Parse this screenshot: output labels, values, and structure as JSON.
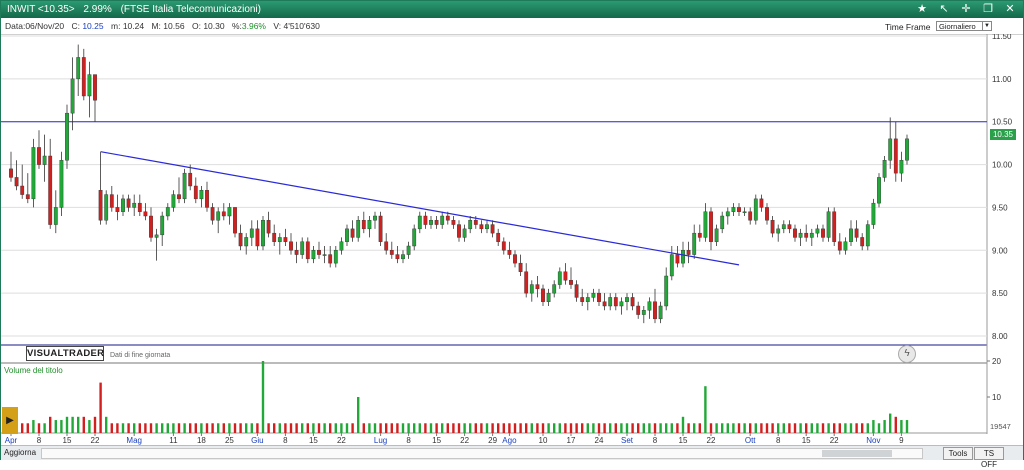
{
  "window": {
    "symbol": "INWIT <10.35>",
    "change": "2.99%",
    "name": "(FTSE Italia Telecomunicazioni)"
  },
  "info": {
    "date_label": "Data:",
    "date": "06/Nov/20",
    "close_label": "C:",
    "close": "10.25",
    "min_label": "m:",
    "min": "10.24",
    "max_label": "M:",
    "max": "10.56",
    "open_label": "O:",
    "open": "10.30",
    "pct_label": "%:",
    "pct": "3.96%",
    "vol_label": "V:",
    "vol": "4'510'630"
  },
  "timeframe": {
    "label": "Time Frame",
    "selected": "Giornaliero"
  },
  "toolbar_icons": [
    "star-icon",
    "pointer-icon",
    "crosshair-icon",
    "restore-icon",
    "close-icon"
  ],
  "logo": "VISUALTRADER",
  "eod_note": "Dati di fine giornata",
  "volume_title": "Volume del titolo",
  "volume_last_value": "19547",
  "last_price_tag": "10.35",
  "bottom": {
    "update": "Aggiorna",
    "tools": "Tools",
    "ts": "TS OFF"
  },
  "colors": {
    "up": "#21a838",
    "down": "#d41f1f",
    "trendline": "#2a2ad8",
    "hline": "#2a2ad8"
  },
  "chart_data": {
    "type": "candlestick",
    "y_axis": {
      "min": 8.0,
      "max": 11.5,
      "ticks": [
        "11.50",
        "11.00",
        "10.50",
        "10.00",
        "9.50",
        "9.00",
        "8.50",
        "8.00"
      ]
    },
    "volume_axis": {
      "ticks": [
        "20",
        "10"
      ]
    },
    "x_axis": {
      "labels": [
        {
          "t": "Apr",
          "month": true,
          "i": 0
        },
        {
          "t": "8",
          "i": 5
        },
        {
          "t": "15",
          "i": 10
        },
        {
          "t": "22",
          "i": 15
        },
        {
          "t": "Mag",
          "month": true,
          "i": 22
        },
        {
          "t": "11",
          "i": 29
        },
        {
          "t": "18",
          "i": 34
        },
        {
          "t": "25",
          "i": 39
        },
        {
          "t": "Giu",
          "month": true,
          "i": 44
        },
        {
          "t": "8",
          "i": 49
        },
        {
          "t": "15",
          "i": 54
        },
        {
          "t": "22",
          "i": 59
        },
        {
          "t": "Lug",
          "month": true,
          "i": 66
        },
        {
          "t": "8",
          "i": 71
        },
        {
          "t": "15",
          "i": 76
        },
        {
          "t": "22",
          "i": 81
        },
        {
          "t": "29",
          "i": 86
        },
        {
          "t": "Ago",
          "month": true,
          "i": 89
        },
        {
          "t": "10",
          "i": 95
        },
        {
          "t": "17",
          "i": 100
        },
        {
          "t": "24",
          "i": 105
        },
        {
          "t": "Set",
          "month": true,
          "i": 110
        },
        {
          "t": "8",
          "i": 115
        },
        {
          "t": "15",
          "i": 120
        },
        {
          "t": "22",
          "i": 125
        },
        {
          "t": "Ott",
          "month": true,
          "i": 132
        },
        {
          "t": "8",
          "i": 137
        },
        {
          "t": "15",
          "i": 142
        },
        {
          "t": "22",
          "i": 147
        },
        {
          "t": "Nov",
          "month": true,
          "i": 154
        },
        {
          "t": "9",
          "i": 159
        }
      ]
    },
    "horizontal_line": 10.5,
    "trendline": {
      "from": {
        "i": 16,
        "y": 10.15
      },
      "to": {
        "i": 130,
        "y": 8.83
      }
    },
    "candles": [
      [
        9.95,
        10.15,
        9.8,
        9.85,
        4
      ],
      [
        9.85,
        10.05,
        9.7,
        9.75,
        3
      ],
      [
        9.75,
        10.0,
        9.6,
        9.65,
        3
      ],
      [
        9.65,
        9.9,
        9.55,
        9.6,
        3
      ],
      [
        9.6,
        10.3,
        9.5,
        10.2,
        4
      ],
      [
        10.2,
        10.4,
        9.95,
        10.0,
        3
      ],
      [
        10.0,
        10.35,
        9.8,
        10.1,
        3
      ],
      [
        10.1,
        10.3,
        9.25,
        9.3,
        5
      ],
      [
        9.3,
        9.7,
        9.2,
        9.5,
        4
      ],
      [
        9.5,
        10.15,
        9.4,
        10.05,
        4
      ],
      [
        10.05,
        10.7,
        9.95,
        10.6,
        5
      ],
      [
        10.6,
        11.25,
        10.4,
        11.0,
        5
      ],
      [
        11.0,
        11.4,
        10.8,
        11.25,
        5
      ],
      [
        11.25,
        11.35,
        10.75,
        10.8,
        5
      ],
      [
        10.8,
        11.2,
        10.55,
        11.05,
        4
      ],
      [
        11.05,
        11.05,
        10.5,
        10.75,
        5
      ],
      [
        9.7,
        10.15,
        9.3,
        9.35,
        14
      ],
      [
        9.35,
        9.7,
        9.3,
        9.65,
        5
      ],
      [
        9.65,
        9.75,
        9.45,
        9.5,
        3
      ],
      [
        9.5,
        9.65,
        9.35,
        9.45,
        3
      ],
      [
        9.45,
        9.65,
        9.4,
        9.6,
        3
      ],
      [
        9.6,
        9.65,
        9.45,
        9.5,
        3
      ],
      [
        9.5,
        9.65,
        9.4,
        9.55,
        3
      ],
      [
        9.55,
        9.65,
        9.4,
        9.45,
        3
      ],
      [
        9.45,
        9.55,
        9.35,
        9.4,
        3
      ],
      [
        9.4,
        9.5,
        9.1,
        9.15,
        3
      ],
      [
        9.15,
        9.25,
        8.88,
        9.18,
        3
      ],
      [
        9.18,
        9.45,
        9.05,
        9.4,
        3
      ],
      [
        9.4,
        9.55,
        9.35,
        9.5,
        3
      ],
      [
        9.5,
        9.7,
        9.45,
        9.65,
        3
      ],
      [
        9.65,
        9.85,
        9.55,
        9.6,
        3
      ],
      [
        9.6,
        9.95,
        9.55,
        9.9,
        3
      ],
      [
        9.9,
        10.0,
        9.7,
        9.75,
        3
      ],
      [
        9.75,
        9.85,
        9.55,
        9.6,
        3
      ],
      [
        9.6,
        9.75,
        9.5,
        9.7,
        3
      ],
      [
        9.7,
        9.8,
        9.45,
        9.5,
        3
      ],
      [
        9.5,
        9.55,
        9.3,
        9.35,
        3
      ],
      [
        9.35,
        9.5,
        9.2,
        9.45,
        3
      ],
      [
        9.45,
        9.55,
        9.35,
        9.4,
        3
      ],
      [
        9.4,
        9.55,
        9.3,
        9.5,
        3
      ],
      [
        9.5,
        9.5,
        9.15,
        9.2,
        3
      ],
      [
        9.2,
        9.3,
        9.0,
        9.05,
        3
      ],
      [
        9.05,
        9.2,
        8.95,
        9.15,
        3
      ],
      [
        9.15,
        9.35,
        9.05,
        9.25,
        3
      ],
      [
        9.25,
        9.35,
        9.0,
        9.05,
        3
      ],
      [
        9.05,
        9.4,
        9.0,
        9.35,
        20
      ],
      [
        9.35,
        9.45,
        9.15,
        9.2,
        3
      ],
      [
        9.2,
        9.3,
        9.05,
        9.1,
        3
      ],
      [
        9.1,
        9.2,
        8.95,
        9.15,
        3
      ],
      [
        9.15,
        9.25,
        9.05,
        9.1,
        3
      ],
      [
        9.1,
        9.2,
        8.95,
        9.0,
        3
      ],
      [
        9.0,
        9.1,
        8.85,
        8.95,
        3
      ],
      [
        8.95,
        9.15,
        8.9,
        9.1,
        3
      ],
      [
        9.1,
        9.15,
        8.85,
        8.9,
        3
      ],
      [
        8.9,
        9.05,
        8.85,
        9.0,
        3
      ],
      [
        9.0,
        9.1,
        8.9,
        8.95,
        3
      ],
      [
        8.95,
        9.05,
        8.85,
        8.95,
        3
      ],
      [
        8.95,
        9.05,
        8.8,
        8.85,
        3
      ],
      [
        8.85,
        9.05,
        8.8,
        9.0,
        3
      ],
      [
        9.0,
        9.15,
        8.95,
        9.1,
        3
      ],
      [
        9.1,
        9.3,
        9.05,
        9.25,
        3
      ],
      [
        9.25,
        9.35,
        9.1,
        9.15,
        3
      ],
      [
        9.15,
        9.4,
        9.1,
        9.35,
        10
      ],
      [
        9.35,
        9.45,
        9.2,
        9.25,
        3
      ],
      [
        9.25,
        9.4,
        9.15,
        9.35,
        3
      ],
      [
        9.35,
        9.45,
        9.25,
        9.4,
        3
      ],
      [
        9.4,
        9.45,
        9.05,
        9.1,
        3
      ],
      [
        9.1,
        9.2,
        8.95,
        9.0,
        3
      ],
      [
        9.0,
        9.1,
        8.9,
        8.95,
        3
      ],
      [
        8.95,
        9.05,
        8.85,
        8.9,
        3
      ],
      [
        8.9,
        9.0,
        8.85,
        8.95,
        3
      ],
      [
        8.95,
        9.1,
        8.9,
        9.05,
        3
      ],
      [
        9.05,
        9.3,
        9.0,
        9.25,
        3
      ],
      [
        9.25,
        9.45,
        9.2,
        9.4,
        3
      ],
      [
        9.4,
        9.45,
        9.25,
        9.3,
        3
      ],
      [
        9.3,
        9.4,
        9.25,
        9.35,
        3
      ],
      [
        9.35,
        9.4,
        9.25,
        9.3,
        3
      ],
      [
        9.3,
        9.45,
        9.25,
        9.4,
        3
      ],
      [
        9.4,
        9.45,
        9.3,
        9.35,
        3
      ],
      [
        9.35,
        9.4,
        9.25,
        9.3,
        3
      ],
      [
        9.3,
        9.35,
        9.1,
        9.15,
        3
      ],
      [
        9.15,
        9.3,
        9.1,
        9.25,
        3
      ],
      [
        9.25,
        9.4,
        9.2,
        9.35,
        3
      ],
      [
        9.35,
        9.4,
        9.25,
        9.3,
        3
      ],
      [
        9.3,
        9.35,
        9.2,
        9.25,
        3
      ],
      [
        9.25,
        9.35,
        9.2,
        9.3,
        3
      ],
      [
        9.3,
        9.35,
        9.15,
        9.2,
        3
      ],
      [
        9.2,
        9.25,
        9.05,
        9.1,
        3
      ],
      [
        9.1,
        9.15,
        8.95,
        9.0,
        3
      ],
      [
        9.0,
        9.1,
        8.9,
        8.95,
        3
      ],
      [
        8.95,
        9.0,
        8.8,
        8.85,
        3
      ],
      [
        8.85,
        8.95,
        8.7,
        8.75,
        3
      ],
      [
        8.75,
        8.85,
        8.45,
        8.5,
        3
      ],
      [
        8.5,
        8.65,
        8.4,
        8.6,
        3
      ],
      [
        8.6,
        8.7,
        8.45,
        8.55,
        3
      ],
      [
        8.55,
        8.6,
        8.35,
        8.4,
        3
      ],
      [
        8.4,
        8.55,
        8.35,
        8.5,
        3
      ],
      [
        8.5,
        8.65,
        8.45,
        8.6,
        3
      ],
      [
        8.6,
        8.8,
        8.55,
        8.75,
        3
      ],
      [
        8.75,
        8.85,
        8.6,
        8.65,
        3
      ],
      [
        8.65,
        8.8,
        8.55,
        8.6,
        3
      ],
      [
        8.6,
        8.65,
        8.4,
        8.45,
        3
      ],
      [
        8.45,
        8.55,
        8.35,
        8.4,
        3
      ],
      [
        8.4,
        8.5,
        8.3,
        8.45,
        3
      ],
      [
        8.45,
        8.55,
        8.4,
        8.5,
        3
      ],
      [
        8.5,
        8.55,
        8.35,
        8.4,
        3
      ],
      [
        8.4,
        8.5,
        8.3,
        8.35,
        3
      ],
      [
        8.35,
        8.5,
        8.3,
        8.45,
        3
      ],
      [
        8.45,
        8.5,
        8.3,
        8.35,
        3
      ],
      [
        8.35,
        8.45,
        8.25,
        8.4,
        3
      ],
      [
        8.4,
        8.5,
        8.3,
        8.45,
        3
      ],
      [
        8.45,
        8.5,
        8.3,
        8.35,
        3
      ],
      [
        8.35,
        8.4,
        8.2,
        8.25,
        3
      ],
      [
        8.25,
        8.35,
        8.15,
        8.3,
        3
      ],
      [
        8.3,
        8.45,
        8.2,
        8.4,
        3
      ],
      [
        8.4,
        8.55,
        8.15,
        8.2,
        3
      ],
      [
        8.2,
        8.4,
        8.15,
        8.35,
        3
      ],
      [
        8.35,
        8.8,
        8.3,
        8.7,
        3
      ],
      [
        8.7,
        9.05,
        8.65,
        8.95,
        3
      ],
      [
        8.95,
        9.05,
        8.8,
        8.85,
        3
      ],
      [
        8.85,
        9.1,
        8.8,
        9.0,
        5
      ],
      [
        9.0,
        9.1,
        8.85,
        8.95,
        3
      ],
      [
        8.95,
        9.3,
        8.9,
        9.2,
        3
      ],
      [
        9.2,
        9.3,
        9.1,
        9.15,
        3
      ],
      [
        9.15,
        9.55,
        9.1,
        9.45,
        13
      ],
      [
        9.45,
        9.5,
        9.0,
        9.1,
        3
      ],
      [
        9.1,
        9.3,
        9.05,
        9.25,
        3
      ],
      [
        9.25,
        9.45,
        9.2,
        9.4,
        3
      ],
      [
        9.4,
        9.5,
        9.3,
        9.45,
        3
      ],
      [
        9.45,
        9.55,
        9.4,
        9.5,
        3
      ],
      [
        9.5,
        9.55,
        9.4,
        9.45,
        3
      ],
      [
        9.45,
        9.5,
        9.4,
        9.45,
        3
      ],
      [
        9.45,
        9.5,
        9.3,
        9.35,
        3
      ],
      [
        9.35,
        9.65,
        9.3,
        9.6,
        3
      ],
      [
        9.6,
        9.65,
        9.45,
        9.5,
        3
      ],
      [
        9.5,
        9.55,
        9.3,
        9.35,
        3
      ],
      [
        9.35,
        9.4,
        9.15,
        9.2,
        3
      ],
      [
        9.2,
        9.3,
        9.1,
        9.25,
        3
      ],
      [
        9.25,
        9.35,
        9.2,
        9.3,
        3
      ],
      [
        9.3,
        9.35,
        9.2,
        9.25,
        3
      ],
      [
        9.25,
        9.3,
        9.1,
        9.15,
        3
      ],
      [
        9.15,
        9.25,
        9.05,
        9.2,
        3
      ],
      [
        9.2,
        9.3,
        9.1,
        9.15,
        3
      ],
      [
        9.15,
        9.25,
        9.05,
        9.2,
        3
      ],
      [
        9.2,
        9.3,
        9.15,
        9.25,
        3
      ],
      [
        9.25,
        9.3,
        9.1,
        9.15,
        3
      ],
      [
        9.15,
        9.5,
        9.1,
        9.45,
        3
      ],
      [
        9.45,
        9.5,
        9.05,
        9.1,
        3
      ],
      [
        9.1,
        9.2,
        8.95,
        9.0,
        3
      ],
      [
        9.0,
        9.15,
        8.95,
        9.1,
        3
      ],
      [
        9.1,
        9.35,
        9.05,
        9.25,
        3
      ],
      [
        9.25,
        9.35,
        9.1,
        9.15,
        3
      ],
      [
        9.15,
        9.2,
        9.0,
        9.05,
        3
      ],
      [
        9.05,
        9.35,
        9.0,
        9.3,
        3
      ],
      [
        9.3,
        9.6,
        9.25,
        9.55,
        4
      ],
      [
        9.55,
        9.9,
        9.5,
        9.85,
        3
      ],
      [
        9.85,
        10.1,
        9.8,
        10.05,
        4
      ],
      [
        10.05,
        10.55,
        9.95,
        10.3,
        6
      ],
      [
        10.3,
        10.5,
        9.8,
        9.9,
        5
      ],
      [
        9.9,
        10.15,
        9.8,
        10.05,
        4
      ],
      [
        10.05,
        10.35,
        10.0,
        10.3,
        4
      ]
    ]
  }
}
